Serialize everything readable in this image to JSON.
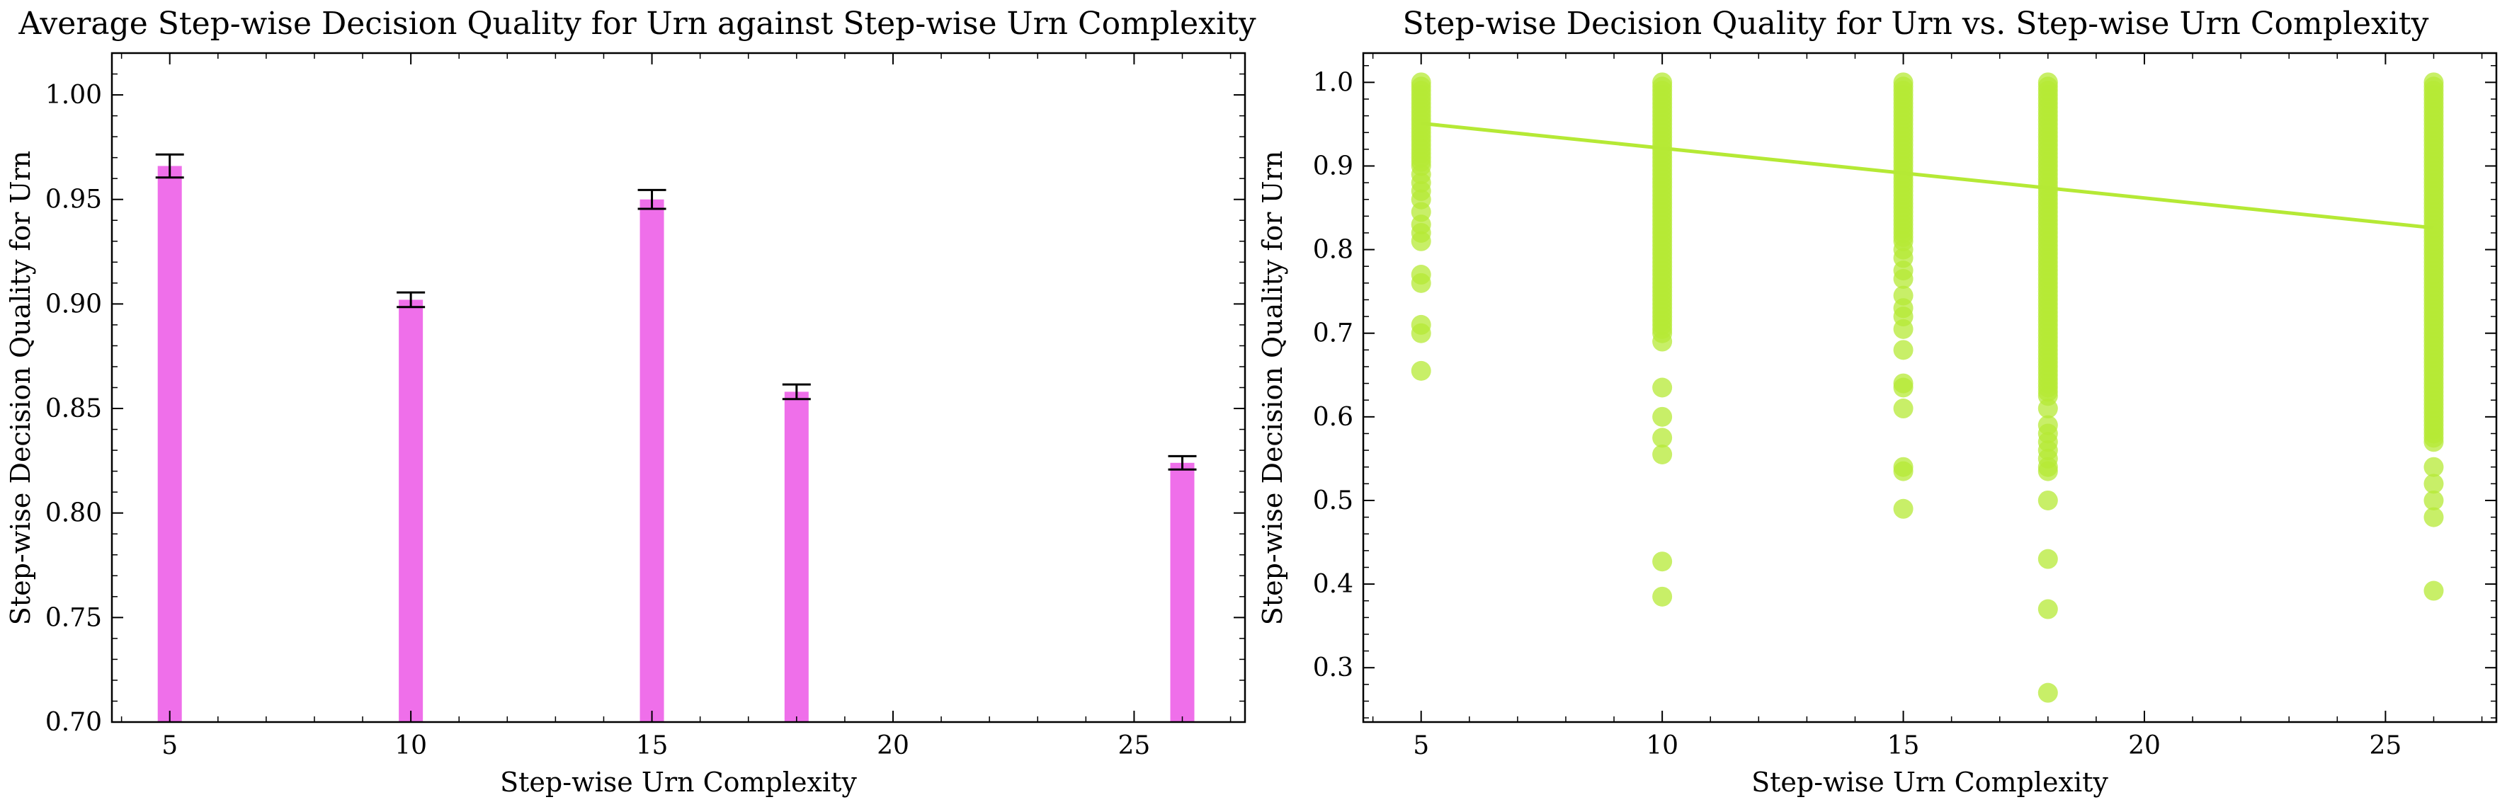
{
  "chart_data": [
    {
      "type": "bar",
      "title": "Average Step-wise Decision Quality for Urn against Step-wise Urn Complexity",
      "xlabel": "Step-wise Urn Complexity",
      "ylabel": "Step-wise Decision Quality for Urn",
      "xlim": [
        3.8,
        27.3
      ],
      "ylim": [
        0.7,
        1.02
      ],
      "xticks": [
        5,
        10,
        15,
        20,
        25
      ],
      "yticks": [
        0.7,
        0.75,
        0.8,
        0.85,
        0.9,
        0.95,
        1.0
      ],
      "ytick_labels": [
        "0.70",
        "0.75",
        "0.80",
        "0.85",
        "0.90",
        "0.95",
        "1.00"
      ],
      "bar_color": "#ef6fea",
      "error_color": "#000000",
      "x": [
        5,
        10,
        15,
        18,
        26
      ],
      "values": [
        0.966,
        0.902,
        0.95,
        0.858,
        0.824
      ],
      "errors": [
        0.0055,
        0.0035,
        0.0045,
        0.0035,
        0.0032
      ]
    },
    {
      "type": "scatter",
      "title": "Step-wise Decision Quality for Urn vs. Step-wise Urn Complexity",
      "xlabel": "Step-wise Urn Complexity",
      "ylabel": "Step-wise Decision Quality for Urn",
      "xlim": [
        3.8,
        27.3
      ],
      "ylim": [
        0.235,
        1.035
      ],
      "xticks": [
        5,
        10,
        15,
        20,
        25
      ],
      "yticks": [
        0.3,
        0.4,
        0.5,
        0.6,
        0.7,
        0.8,
        0.9,
        1.0
      ],
      "ytick_labels": [
        "0.3",
        "0.4",
        "0.5",
        "0.6",
        "0.7",
        "0.8",
        "0.9",
        "1.0"
      ],
      "point_color": "#b5e935",
      "line_color": "#b5e935",
      "trend_line": {
        "x": [
          5,
          26
        ],
        "y": [
          0.951,
          0.826
        ]
      },
      "points": [
        {
          "x": 5,
          "y": [
            1.0,
            0.995,
            0.99,
            0.985,
            0.98,
            0.975,
            0.97,
            0.965,
            0.96,
            0.955,
            0.95,
            0.945,
            0.94,
            0.935,
            0.93,
            0.925,
            0.92,
            0.915,
            0.91,
            0.905,
            0.9,
            0.89,
            0.88,
            0.87,
            0.86,
            0.845,
            0.83,
            0.82,
            0.81,
            0.77,
            0.76,
            0.71,
            0.7,
            0.655
          ]
        },
        {
          "x": 10,
          "y": [
            1.0,
            0.995,
            0.99,
            0.985,
            0.98,
            0.975,
            0.97,
            0.965,
            0.96,
            0.955,
            0.95,
            0.945,
            0.94,
            0.935,
            0.93,
            0.925,
            0.92,
            0.915,
            0.91,
            0.905,
            0.9,
            0.895,
            0.89,
            0.885,
            0.88,
            0.875,
            0.87,
            0.865,
            0.86,
            0.855,
            0.85,
            0.845,
            0.84,
            0.835,
            0.83,
            0.825,
            0.82,
            0.815,
            0.81,
            0.805,
            0.8,
            0.795,
            0.79,
            0.785,
            0.78,
            0.775,
            0.77,
            0.765,
            0.76,
            0.755,
            0.75,
            0.745,
            0.74,
            0.735,
            0.73,
            0.725,
            0.72,
            0.715,
            0.71,
            0.705,
            0.7,
            0.69,
            0.635,
            0.6,
            0.575,
            0.555,
            0.427,
            0.385
          ]
        },
        {
          "x": 15,
          "y": [
            1.0,
            0.995,
            0.99,
            0.985,
            0.98,
            0.975,
            0.97,
            0.965,
            0.96,
            0.955,
            0.95,
            0.945,
            0.94,
            0.935,
            0.93,
            0.925,
            0.92,
            0.915,
            0.91,
            0.905,
            0.9,
            0.895,
            0.89,
            0.885,
            0.88,
            0.875,
            0.87,
            0.865,
            0.86,
            0.855,
            0.85,
            0.845,
            0.84,
            0.835,
            0.83,
            0.825,
            0.82,
            0.815,
            0.81,
            0.8,
            0.79,
            0.775,
            0.765,
            0.745,
            0.73,
            0.72,
            0.705,
            0.68,
            0.64,
            0.635,
            0.61,
            0.54,
            0.535,
            0.49
          ]
        },
        {
          "x": 18,
          "y": [
            1.0,
            0.995,
            0.99,
            0.985,
            0.98,
            0.975,
            0.97,
            0.965,
            0.96,
            0.955,
            0.95,
            0.945,
            0.94,
            0.935,
            0.93,
            0.925,
            0.92,
            0.915,
            0.91,
            0.905,
            0.9,
            0.895,
            0.89,
            0.885,
            0.88,
            0.875,
            0.87,
            0.865,
            0.86,
            0.855,
            0.85,
            0.845,
            0.84,
            0.835,
            0.83,
            0.825,
            0.82,
            0.815,
            0.81,
            0.805,
            0.8,
            0.795,
            0.79,
            0.785,
            0.78,
            0.775,
            0.77,
            0.765,
            0.76,
            0.755,
            0.75,
            0.745,
            0.74,
            0.735,
            0.73,
            0.725,
            0.72,
            0.715,
            0.71,
            0.705,
            0.7,
            0.695,
            0.69,
            0.685,
            0.68,
            0.675,
            0.67,
            0.665,
            0.66,
            0.655,
            0.65,
            0.645,
            0.64,
            0.635,
            0.63,
            0.625,
            0.61,
            0.59,
            0.58,
            0.57,
            0.56,
            0.55,
            0.54,
            0.535,
            0.5,
            0.43,
            0.37,
            0.27
          ]
        },
        {
          "x": 26,
          "y": [
            1.0,
            0.995,
            0.99,
            0.985,
            0.98,
            0.975,
            0.97,
            0.965,
            0.96,
            0.955,
            0.95,
            0.945,
            0.94,
            0.935,
            0.93,
            0.925,
            0.92,
            0.915,
            0.91,
            0.905,
            0.9,
            0.895,
            0.89,
            0.885,
            0.88,
            0.875,
            0.87,
            0.865,
            0.86,
            0.855,
            0.85,
            0.845,
            0.84,
            0.835,
            0.83,
            0.825,
            0.82,
            0.815,
            0.81,
            0.805,
            0.8,
            0.795,
            0.79,
            0.785,
            0.78,
            0.775,
            0.77,
            0.765,
            0.76,
            0.755,
            0.75,
            0.745,
            0.74,
            0.735,
            0.73,
            0.725,
            0.72,
            0.715,
            0.71,
            0.705,
            0.7,
            0.695,
            0.69,
            0.685,
            0.68,
            0.675,
            0.67,
            0.665,
            0.66,
            0.655,
            0.65,
            0.645,
            0.64,
            0.635,
            0.63,
            0.625,
            0.62,
            0.615,
            0.61,
            0.605,
            0.6,
            0.595,
            0.59,
            0.585,
            0.58,
            0.575,
            0.57,
            0.54,
            0.52,
            0.5,
            0.48,
            0.392
          ]
        }
      ]
    }
  ]
}
